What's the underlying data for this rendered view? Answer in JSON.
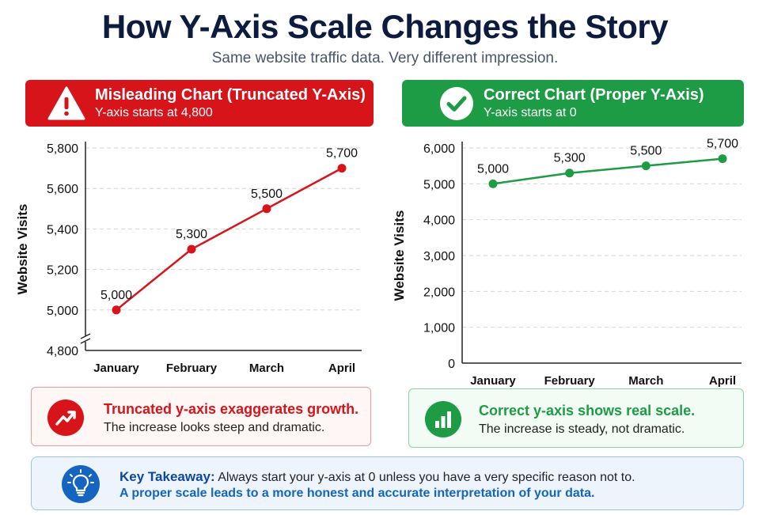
{
  "header": {
    "title": "How Y-Axis Scale Changes the Story",
    "subtitle": "Same website traffic data. Very different impression."
  },
  "colors": {
    "red": "#d7141a",
    "green": "#1e9b45",
    "blue": "#1565c0"
  },
  "left_panel": {
    "banner_title": "Misleading Chart (Truncated Y-Axis)",
    "banner_subtitle": "Y-axis starts at 4,800",
    "icon": "warning-icon",
    "note_title": "Truncated y-axis exaggerates growth.",
    "note_text": "The increase looks steep and dramatic.",
    "note_icon": "trending-up-icon"
  },
  "right_panel": {
    "banner_title": "Correct Chart (Proper Y-Axis)",
    "banner_subtitle": "Y-axis starts at 0",
    "icon": "check-circle-icon",
    "note_title": "Correct y-axis shows real scale.",
    "note_text": "The increase is steady, not dramatic.",
    "note_icon": "bar-chart-icon"
  },
  "takeaway": {
    "label": "Key Takeaway:",
    "text": "Always start your y-axis at 0 unless you have a very specific reason not to.",
    "line2": "A proper scale leads to a more honest and accurate interpretation of your data.",
    "icon": "lightbulb-icon"
  },
  "chart_data": [
    {
      "type": "line",
      "categories": [
        "January",
        "February",
        "March",
        "April"
      ],
      "values": [
        5000,
        5300,
        5500,
        5700
      ],
      "data_labels": [
        "5,000",
        "5,300",
        "5,500",
        "5,700"
      ],
      "ylabel": "Website Visits",
      "ylim": [
        4800,
        5800
      ],
      "yticks": [
        4800,
        5000,
        5200,
        5400,
        5600,
        5800
      ],
      "ytick_labels": [
        "4,800",
        "5,000",
        "5,200",
        "5,400",
        "5,600",
        "5,800"
      ],
      "axis_break": true,
      "grid": true,
      "color": "#d7141a"
    },
    {
      "type": "line",
      "categories": [
        "January",
        "February",
        "March",
        "April"
      ],
      "values": [
        5000,
        5300,
        5500,
        5700
      ],
      "data_labels": [
        "5,000",
        "5,300",
        "5,500",
        "5,700"
      ],
      "ylabel": "Website Visits",
      "ylim": [
        0,
        6000
      ],
      "yticks": [
        0,
        1000,
        2000,
        3000,
        4000,
        5000,
        6000
      ],
      "ytick_labels": [
        "0",
        "1,000",
        "2,000",
        "3,000",
        "4,000",
        "5,000",
        "6,000"
      ],
      "axis_break": false,
      "grid": true,
      "color": "#1e9b45"
    }
  ]
}
